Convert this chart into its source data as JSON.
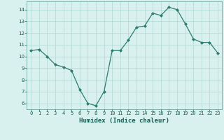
{
  "x": [
    0,
    1,
    2,
    3,
    4,
    5,
    6,
    7,
    8,
    9,
    10,
    11,
    12,
    13,
    14,
    15,
    16,
    17,
    18,
    19,
    20,
    21,
    22,
    23
  ],
  "y": [
    10.5,
    10.6,
    10.0,
    9.3,
    9.1,
    8.8,
    7.2,
    6.0,
    5.8,
    7.0,
    10.5,
    10.5,
    11.4,
    12.5,
    12.6,
    13.7,
    13.5,
    14.2,
    14.0,
    12.8,
    11.5,
    11.2,
    11.2,
    10.3
  ],
  "xlabel": "Humidex (Indice chaleur)",
  "ylim": [
    5.5,
    14.7
  ],
  "xlim": [
    -0.5,
    23.5
  ],
  "yticks": [
    6,
    7,
    8,
    9,
    10,
    11,
    12,
    13,
    14
  ],
  "xticks": [
    0,
    1,
    2,
    3,
    4,
    5,
    6,
    7,
    8,
    9,
    10,
    11,
    12,
    13,
    14,
    15,
    16,
    17,
    18,
    19,
    20,
    21,
    22,
    23
  ],
  "line_color": "#2e7d6e",
  "marker_color": "#2e7d6e",
  "bg_color": "#d8f0ee",
  "grid_color": "#b0d8d0",
  "font_color": "#1a5c52",
  "xlabel_color": "#1a5c52"
}
